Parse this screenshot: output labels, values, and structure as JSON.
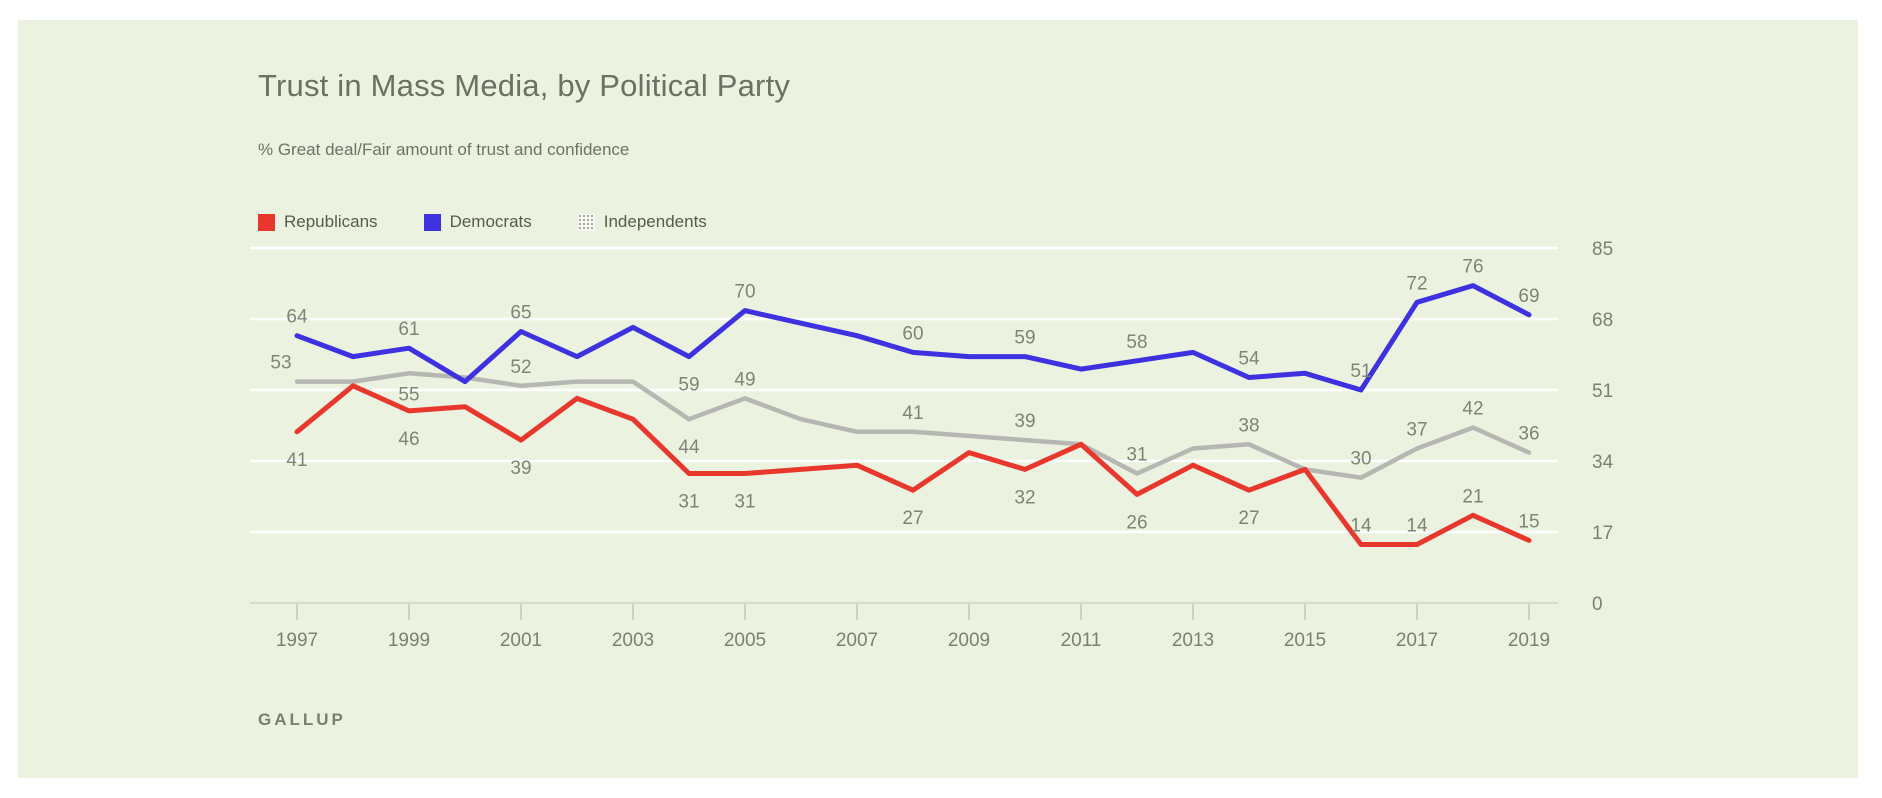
{
  "header": {
    "title": "Trust in Mass Media, by Political Party",
    "subtitle": "% Great deal/Fair amount of trust and confidence"
  },
  "legend": {
    "items": [
      {
        "label": "Republicans",
        "color": "#e8382d",
        "style": "solid"
      },
      {
        "label": "Democrats",
        "color": "#3d31e0",
        "style": "solid"
      },
      {
        "label": "Independents",
        "color": "#b6b6b2",
        "style": "halftone"
      }
    ]
  },
  "footer": {
    "source": "GALLUP"
  },
  "colors": {
    "card_background": "#ebf2e0",
    "gridline": "#ffffff",
    "axis_line": "#d6dbc8",
    "tick": "#ccd2bf",
    "chart_text": "#7b8173"
  },
  "chart_data": {
    "type": "line",
    "title": "Trust in Mass Media, by Political Party",
    "subtitle": "% Great deal/Fair amount of trust and confidence",
    "xlabel": "",
    "ylabel": "",
    "ylim": [
      0,
      85
    ],
    "yticks": [
      0,
      17,
      34,
      51,
      68,
      85
    ],
    "xticks": [
      1997,
      1999,
      2001,
      2003,
      2005,
      2007,
      2009,
      2011,
      2013,
      2015,
      2017,
      2019
    ],
    "grid": "horizontal",
    "legend_position": "top-left",
    "x": [
      1997,
      1998,
      1999,
      2000,
      2001,
      2002,
      2003,
      2004,
      2005,
      2006,
      2007,
      2008,
      2009,
      2010,
      2011,
      2012,
      2013,
      2014,
      2015,
      2016,
      2017,
      2018,
      2019
    ],
    "series": [
      {
        "name": "Independents",
        "color": "#b6b6b2",
        "width": 4.5,
        "values": [
          53,
          53,
          55,
          54,
          52,
          53,
          53,
          44,
          49,
          44,
          41,
          41,
          40,
          39,
          38,
          31,
          37,
          38,
          32,
          30,
          37,
          42,
          36
        ],
        "labeled_points": [
          {
            "year": 1997,
            "position": "above",
            "dx": -16
          },
          {
            "year": 1999,
            "position": "below",
            "dy": 27
          },
          {
            "year": 2001,
            "position": "above"
          },
          {
            "year": 2004,
            "position": "below"
          },
          {
            "year": 2005,
            "position": "above"
          },
          {
            "year": 2008,
            "position": "above"
          },
          {
            "year": 2010,
            "position": "above"
          },
          {
            "year": 2012,
            "position": "above"
          },
          {
            "year": 2014,
            "position": "above"
          },
          {
            "year": 2016,
            "position": "above"
          },
          {
            "year": 2017,
            "position": "above"
          },
          {
            "year": 2018,
            "position": "above"
          },
          {
            "year": 2019,
            "position": "above"
          }
        ]
      },
      {
        "name": "Republicans",
        "color": "#e8382d",
        "width": 5,
        "values": [
          41,
          52,
          46,
          47,
          39,
          49,
          44,
          31,
          31,
          32,
          33,
          27,
          36,
          32,
          38,
          26,
          33,
          27,
          32,
          14,
          14,
          21,
          15
        ],
        "labeled_points": [
          {
            "year": 1997,
            "position": "below"
          },
          {
            "year": 1999,
            "position": "below"
          },
          {
            "year": 2001,
            "position": "below"
          },
          {
            "year": 2004,
            "position": "below"
          },
          {
            "year": 2005,
            "position": "below"
          },
          {
            "year": 2008,
            "position": "below"
          },
          {
            "year": 2010,
            "position": "below"
          },
          {
            "year": 2012,
            "position": "below"
          },
          {
            "year": 2014,
            "position": "below"
          },
          {
            "year": 2016,
            "position": "above"
          },
          {
            "year": 2017,
            "position": "above"
          },
          {
            "year": 2018,
            "position": "above"
          },
          {
            "year": 2019,
            "position": "above"
          }
        ]
      },
      {
        "name": "Democrats",
        "color": "#3d31e0",
        "width": 5,
        "values": [
          64,
          59,
          61,
          53,
          65,
          59,
          66,
          59,
          70,
          67,
          64,
          60,
          59,
          59,
          56,
          58,
          60,
          54,
          55,
          51,
          72,
          76,
          69
        ],
        "labeled_points": [
          {
            "year": 1997,
            "position": "above"
          },
          {
            "year": 1999,
            "position": "above"
          },
          {
            "year": 2001,
            "position": "above"
          },
          {
            "year": 2004,
            "position": "below"
          },
          {
            "year": 2005,
            "position": "above"
          },
          {
            "year": 2008,
            "position": "above"
          },
          {
            "year": 2010,
            "position": "above"
          },
          {
            "year": 2012,
            "position": "above"
          },
          {
            "year": 2014,
            "position": "above"
          },
          {
            "year": 2016,
            "position": "above"
          },
          {
            "year": 2017,
            "position": "above"
          },
          {
            "year": 2018,
            "position": "above"
          },
          {
            "year": 2019,
            "position": "above"
          }
        ]
      }
    ]
  }
}
